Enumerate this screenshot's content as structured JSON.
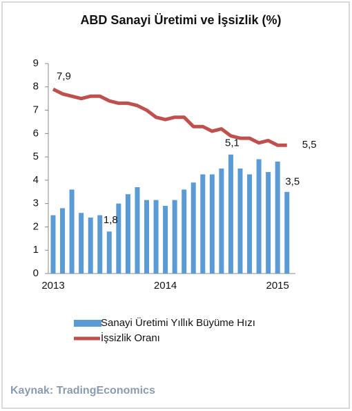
{
  "chart_data": {
    "type": "bar",
    "title": "ABD Sanayi Üretimi ve İşsizlik (%)",
    "source": "Kaynak: TradingEconomics",
    "categories": [
      "2013",
      null,
      null,
      null,
      null,
      null,
      null,
      null,
      null,
      null,
      null,
      null,
      "2014",
      null,
      null,
      null,
      null,
      null,
      null,
      null,
      null,
      null,
      null,
      null,
      "2015",
      null
    ],
    "series": [
      {
        "name": "Sanayi Üretimi Yıllık Büyüme Hızı",
        "type": "bar",
        "color": "#5b9bd5",
        "values": [
          2.5,
          2.8,
          3.6,
          2.6,
          2.4,
          2.5,
          1.8,
          3.0,
          3.4,
          3.7,
          3.15,
          3.15,
          2.9,
          3.15,
          3.6,
          3.9,
          4.25,
          4.25,
          4.5,
          5.1,
          4.5,
          4.25,
          4.9,
          4.35,
          4.8,
          3.5
        ],
        "value_labels": [
          null,
          null,
          null,
          null,
          null,
          null,
          "1,8",
          null,
          null,
          null,
          null,
          null,
          null,
          null,
          null,
          null,
          null,
          null,
          null,
          "5,1",
          null,
          null,
          null,
          null,
          null,
          "3,5"
        ]
      },
      {
        "name": "İşsizlik Oranı",
        "type": "line",
        "color": "#c0504d",
        "values": [
          7.9,
          7.7,
          7.6,
          7.5,
          7.6,
          7.6,
          7.4,
          7.3,
          7.3,
          7.2,
          7.0,
          6.7,
          6.6,
          6.7,
          6.7,
          6.3,
          6.3,
          6.1,
          6.2,
          5.9,
          5.8,
          5.8,
          5.6,
          5.7,
          5.5,
          5.5
        ],
        "value_labels": [
          "7,9",
          null,
          null,
          null,
          null,
          null,
          null,
          null,
          null,
          null,
          null,
          null,
          null,
          null,
          null,
          null,
          null,
          null,
          null,
          null,
          null,
          null,
          null,
          null,
          null,
          "5,5"
        ]
      }
    ],
    "ylim": [
      0,
      9
    ],
    "yticks": [
      0,
      1,
      2,
      3,
      4,
      5,
      6,
      7,
      8,
      9
    ],
    "grid": false
  }
}
